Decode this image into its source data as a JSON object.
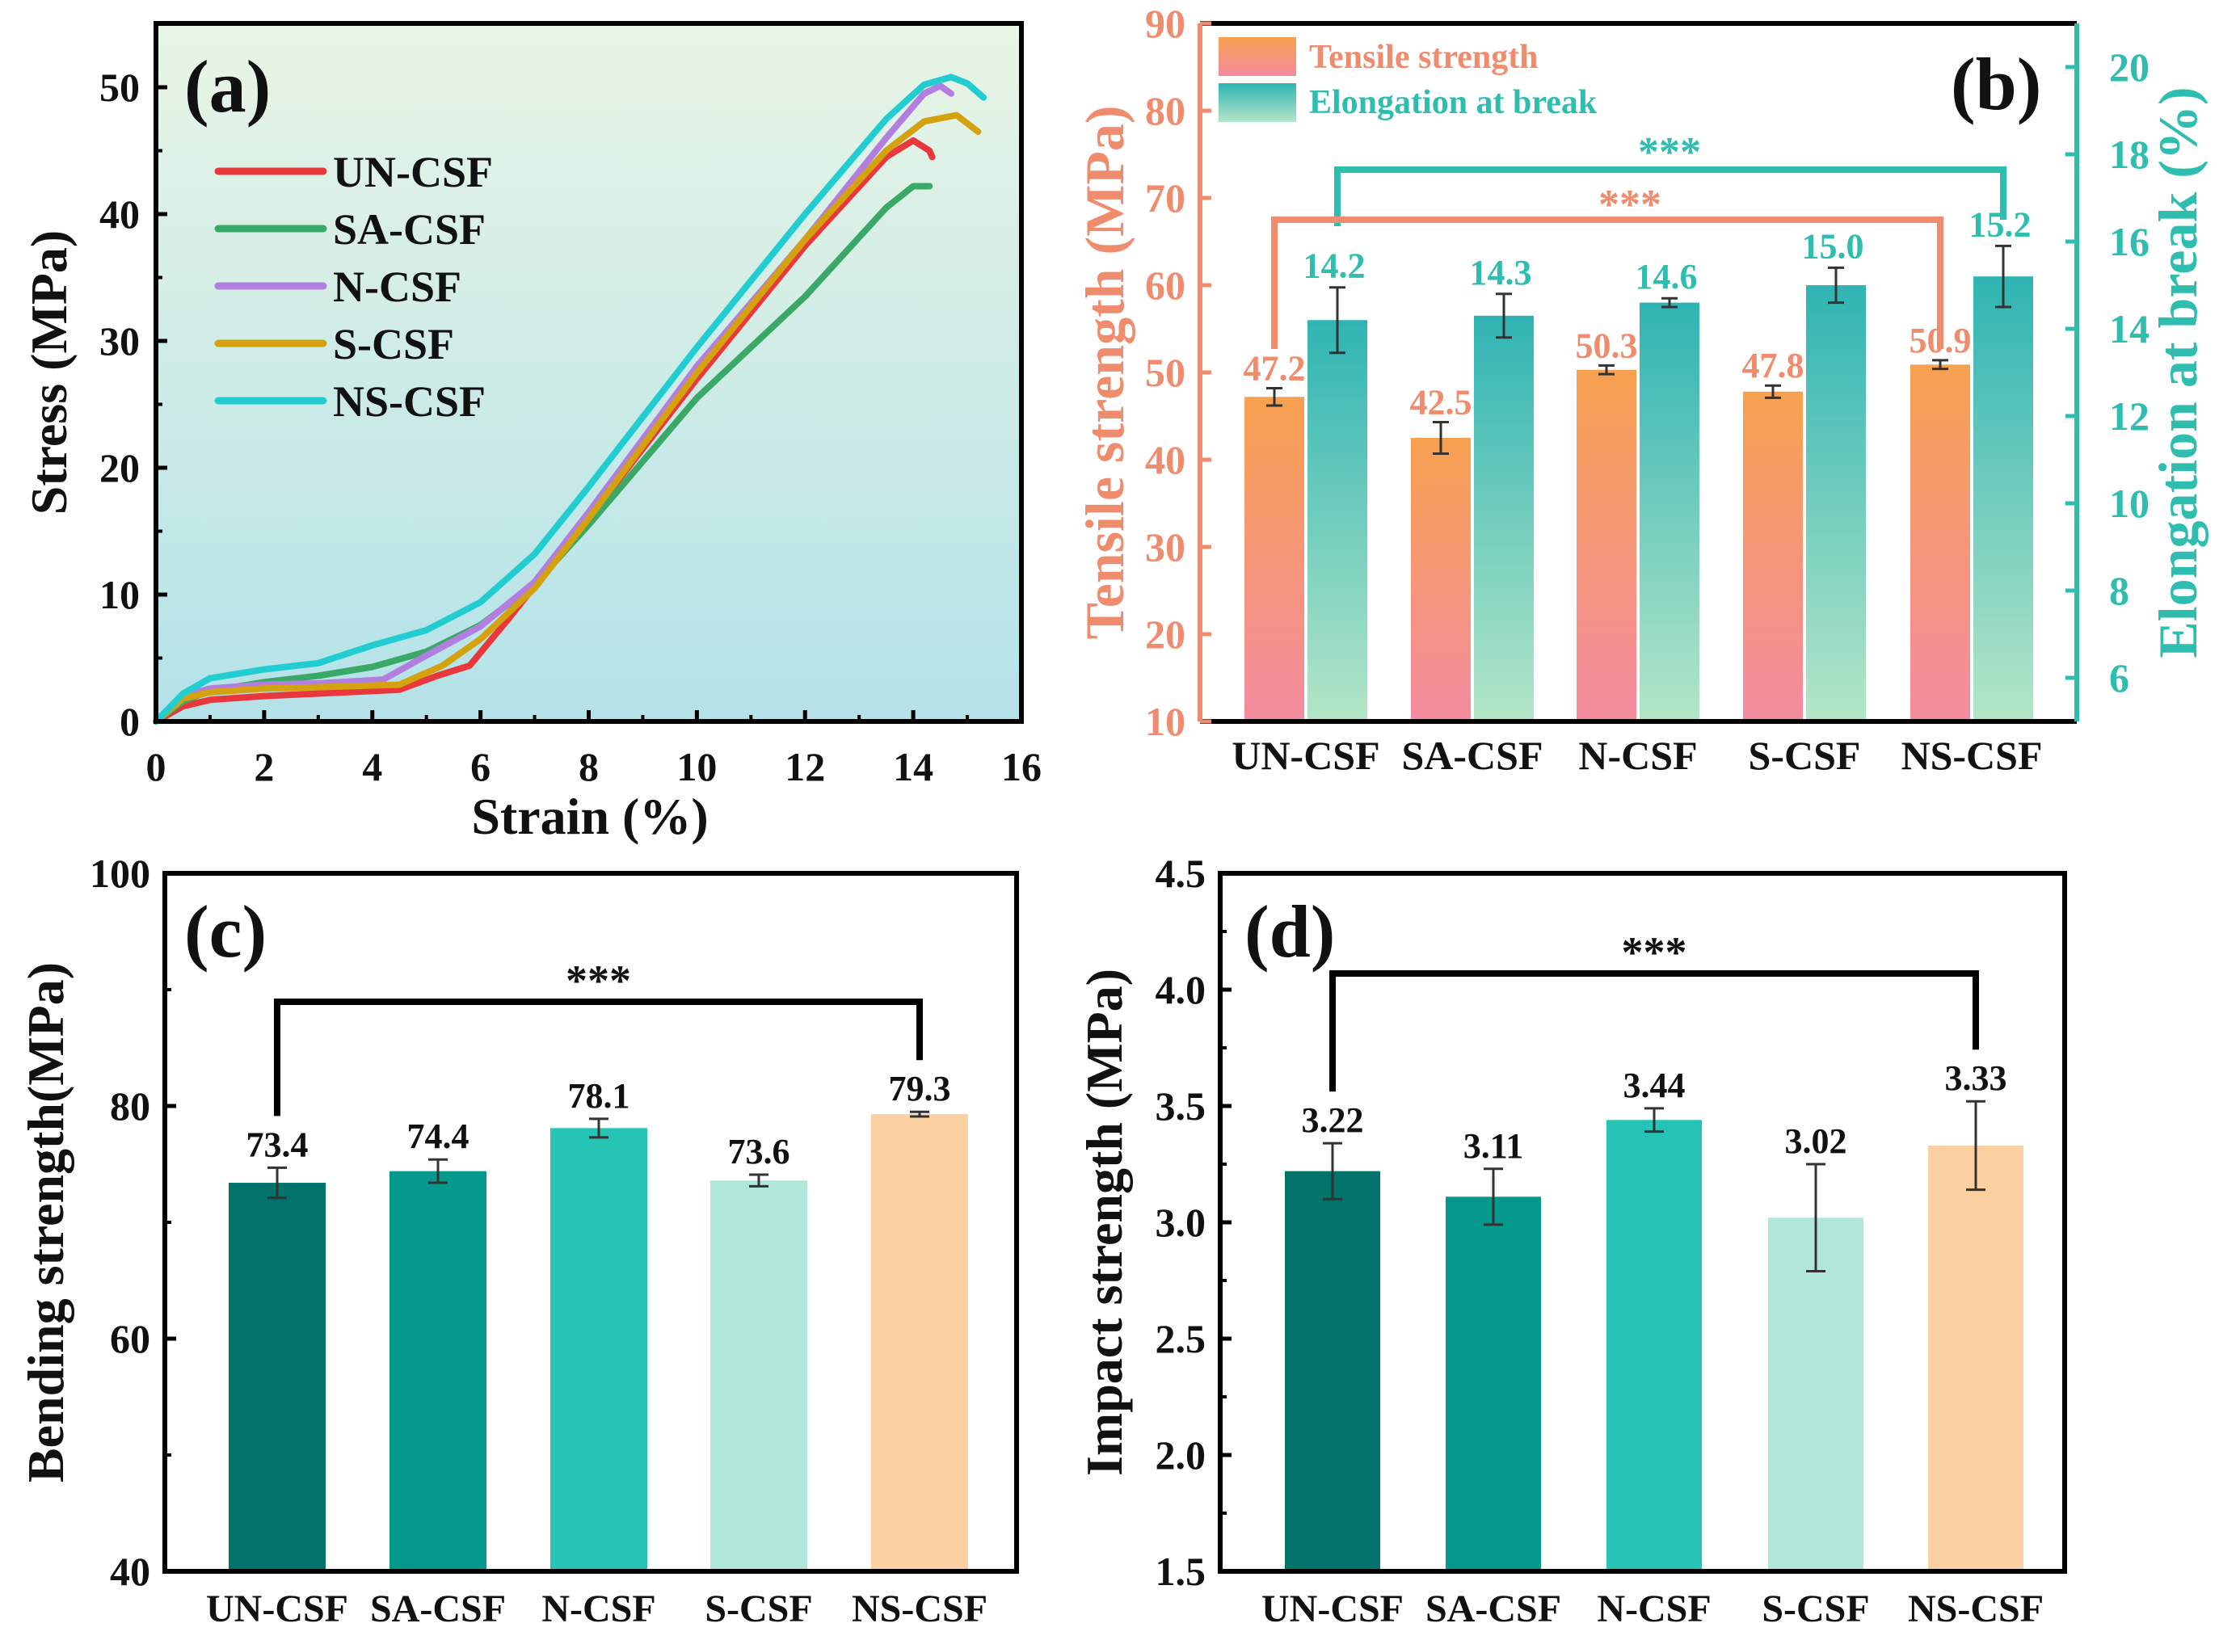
{
  "colors": {
    "un": "#e8383d",
    "sa": "#3aa866",
    "n": "#b27fe0",
    "s": "#d4a10f",
    "ns": "#22cdd2",
    "salmon": "#f08c6e",
    "teal": "#2fbdb0",
    "black": "#111111",
    "c_un": "#017369",
    "c_sa": "#03998c",
    "c_n": "#25c4b5",
    "c_s": "#b1e7d8",
    "c_ns": "#fdd0a2"
  },
  "chart_data": [
    {
      "id": "a",
      "panel_label": "(a)",
      "type": "line",
      "xlabel": "Strain (%)",
      "ylabel": "Stress (MPa)",
      "xlim": [
        0,
        16
      ],
      "ylim": [
        0,
        55
      ],
      "xticks": [
        "0",
        "2",
        "4",
        "6",
        "8",
        "10",
        "12",
        "14",
        "16"
      ],
      "yticks": [
        "0",
        "10",
        "20",
        "30",
        "40",
        "50"
      ],
      "legend_position": "top-left",
      "series": [
        {
          "name": "UN-CSF",
          "color_key": "un",
          "points": [
            [
              0,
              0
            ],
            [
              0.5,
              1.2
            ],
            [
              1,
              1.7
            ],
            [
              2,
              2.0
            ],
            [
              3,
              2.2
            ],
            [
              4.5,
              2.5
            ],
            [
              5.2,
              3.6
            ],
            [
              5.8,
              4.4
            ],
            [
              6.5,
              8
            ],
            [
              8,
              16
            ],
            [
              10,
              27
            ],
            [
              12,
              37.5
            ],
            [
              13.5,
              44.5
            ],
            [
              14,
              45.8
            ],
            [
              14.3,
              45
            ],
            [
              14.35,
              44.5
            ]
          ]
        },
        {
          "name": "SA-CSF",
          "color_key": "sa",
          "points": [
            [
              0,
              0
            ],
            [
              0.5,
              1.6
            ],
            [
              1,
              2.4
            ],
            [
              2,
              3.1
            ],
            [
              3,
              3.6
            ],
            [
              4,
              4.3
            ],
            [
              5,
              5.5
            ],
            [
              6,
              7.6
            ],
            [
              7,
              10.8
            ],
            [
              8,
              15.5
            ],
            [
              10,
              25.5
            ],
            [
              12,
              33.5
            ],
            [
              13.5,
              40.5
            ],
            [
              14,
              42.2
            ],
            [
              14.3,
              42.2
            ]
          ]
        },
        {
          "name": "N-CSF",
          "color_key": "n",
          "points": [
            [
              0,
              0
            ],
            [
              0.5,
              2
            ],
            [
              1,
              2.6
            ],
            [
              2,
              2.9
            ],
            [
              3,
              3.0
            ],
            [
              4.2,
              3.3
            ],
            [
              5,
              5.2
            ],
            [
              6,
              7.5
            ],
            [
              7,
              11
            ],
            [
              8,
              16.5
            ],
            [
              10,
              28
            ],
            [
              12,
              38
            ],
            [
              13.5,
              46
            ],
            [
              14.2,
              49.5
            ],
            [
              14.5,
              50.1
            ],
            [
              14.7,
              49.5
            ]
          ]
        },
        {
          "name": "S-CSF",
          "color_key": "s",
          "points": [
            [
              0,
              0
            ],
            [
              0.5,
              1.8
            ],
            [
              1,
              2.3
            ],
            [
              2,
              2.6
            ],
            [
              3,
              2.7
            ],
            [
              4.5,
              2.9
            ],
            [
              5.3,
              4.4
            ],
            [
              6,
              6.5
            ],
            [
              7,
              10.5
            ],
            [
              8,
              16
            ],
            [
              10,
              27.5
            ],
            [
              12,
              38
            ],
            [
              13.5,
              45
            ],
            [
              14.2,
              47.3
            ],
            [
              14.8,
              47.8
            ],
            [
              15.2,
              46.5
            ]
          ]
        },
        {
          "name": "NS-CSF",
          "color_key": "ns",
          "points": [
            [
              0,
              0
            ],
            [
              0.5,
              2.2
            ],
            [
              1,
              3.4
            ],
            [
              2,
              4.1
            ],
            [
              3,
              4.6
            ],
            [
              4,
              6
            ],
            [
              5,
              7.2
            ],
            [
              6,
              9.4
            ],
            [
              7,
              13.2
            ],
            [
              8,
              18.5
            ],
            [
              10,
              29.5
            ],
            [
              12,
              40
            ],
            [
              13.5,
              47.5
            ],
            [
              14.2,
              50.2
            ],
            [
              14.7,
              50.8
            ],
            [
              15.0,
              50.3
            ],
            [
              15.3,
              49.2
            ]
          ]
        }
      ]
    },
    {
      "id": "b",
      "panel_label": "(b)",
      "type": "bar",
      "categories": [
        "UN-CSF",
        "SA-CSF",
        "N-CSF",
        "S-CSF",
        "NS-CSF"
      ],
      "ylabel_left": "Tensile strength (MPa)",
      "ylabel_right": "Elongation at break (%)",
      "ylim_left": [
        10,
        90
      ],
      "ylim_right": [
        5,
        21
      ],
      "yticks_left": [
        "10",
        "20",
        "30",
        "40",
        "50",
        "60",
        "70",
        "80",
        "90"
      ],
      "yticks_right": [
        "6",
        "8",
        "10",
        "12",
        "14",
        "16",
        "18",
        "20"
      ],
      "legend_position": "top-left",
      "series": [
        {
          "name": "Tensile strength",
          "axis": "left",
          "values": [
            47.2,
            42.5,
            50.3,
            47.8,
            50.9
          ],
          "errors": [
            1.0,
            1.8,
            0.5,
            0.7,
            0.5
          ],
          "labels": [
            "47.2",
            "42.5",
            "50.3",
            "47.8",
            "50.9"
          ]
        },
        {
          "name": "Elongation at break",
          "axis": "right",
          "values": [
            14.2,
            14.3,
            14.6,
            15.0,
            15.2
          ],
          "errors": [
            0.75,
            0.5,
            0.1,
            0.4,
            0.7
          ],
          "labels": [
            "14.2",
            "14.3",
            "14.6",
            "15.0",
            "15.2"
          ]
        }
      ],
      "significance": [
        {
          "label": "***",
          "series": "Elongation at break",
          "from": 0,
          "to": 4
        },
        {
          "label": "***",
          "series": "Tensile strength",
          "from": 0,
          "to": 4
        }
      ]
    },
    {
      "id": "c",
      "panel_label": "(c)",
      "type": "bar",
      "categories": [
        "UN-CSF",
        "SA-CSF",
        "N-CSF",
        "S-CSF",
        "NS-CSF"
      ],
      "ylabel": "Bending strength(MPa)",
      "ylim": [
        40,
        100
      ],
      "yticks": [
        "40",
        "60",
        "80",
        "100"
      ],
      "values": [
        73.4,
        74.4,
        78.1,
        73.6,
        79.3
      ],
      "errors": [
        1.3,
        1.0,
        0.8,
        0.5,
        0.2
      ],
      "labels": [
        "73.4",
        "74.4",
        "78.1",
        "73.6",
        "79.3"
      ],
      "significance": {
        "label": "***",
        "from": 0,
        "to": 4
      }
    },
    {
      "id": "d",
      "panel_label": "(d)",
      "type": "bar",
      "categories": [
        "UN-CSF",
        "SA-CSF",
        "N-CSF",
        "S-CSF",
        "NS-CSF"
      ],
      "ylabel": "Impact strength (MPa)",
      "ylim": [
        1.5,
        4.5
      ],
      "yticks": [
        "1.5",
        "2.0",
        "2.5",
        "3.0",
        "3.5",
        "4.0",
        "4.5"
      ],
      "values": [
        3.22,
        3.11,
        3.44,
        3.02,
        3.33
      ],
      "errors": [
        0.12,
        0.12,
        0.05,
        0.23,
        0.19
      ],
      "labels": [
        "3.22",
        "3.11",
        "3.44",
        "3.02",
        "3.33"
      ],
      "significance": {
        "label": "***",
        "from": 0,
        "to": 4
      }
    }
  ]
}
